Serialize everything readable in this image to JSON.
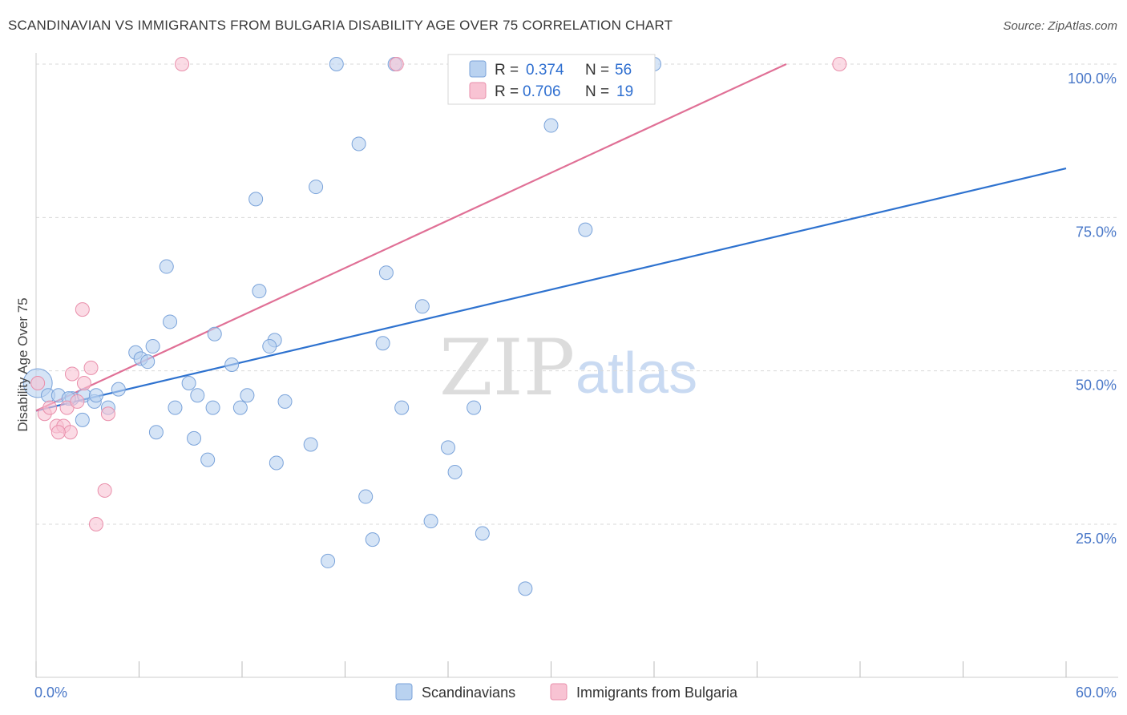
{
  "header": {
    "title": "SCANDINAVIAN VS IMMIGRANTS FROM BULGARIA DISABILITY AGE OVER 75 CORRELATION CHART",
    "source": "Source: ZipAtlas.com"
  },
  "watermark": {
    "zip": "ZIP",
    "atlas": "atlas"
  },
  "legend": {
    "rows": [
      {
        "r_label": "R =",
        "r_value": "0.374",
        "n_label": "N =",
        "n_value": "56"
      },
      {
        "r_label": "R =",
        "r_value": "0.706",
        "n_label": "N =",
        "n_value": "19"
      }
    ]
  },
  "bottom_legend": {
    "items": [
      "Scandinavians",
      "Immigrants from Bulgaria"
    ]
  },
  "colors": {
    "blue_fill": "#b9d2f0",
    "blue_stroke": "#7aa3da",
    "blue_line": "#2e72cf",
    "pink_fill": "#f8c3d3",
    "pink_stroke": "#e98fab",
    "pink_line": "#e07096",
    "grid": "#d9d9d9",
    "tick_label": "#4a78c8"
  },
  "chart_data": {
    "type": "scatter",
    "title": "SCANDINAVIAN VS IMMIGRANTS FROM BULGARIA DISABILITY AGE OVER 75 CORRELATION CHART",
    "xlabel": "",
    "ylabel": "Disability Age Over 75",
    "xlim": [
      0,
      60
    ],
    "ylim": [
      0,
      105
    ],
    "x_tick_labels": [
      "0.0%",
      "60.0%"
    ],
    "y_ticks": [
      25,
      50,
      75,
      100
    ],
    "y_tick_labels": [
      "25.0%",
      "50.0%",
      "75.0%",
      "100.0%"
    ],
    "grid": true,
    "legend_position": "top-center",
    "series": [
      {
        "name": "Scandinavians",
        "color": "#b9d2f0",
        "r": 0.374,
        "n": 56,
        "points": [
          [
            0.1,
            48
          ],
          [
            0.7,
            46
          ],
          [
            1.3,
            46
          ],
          [
            2.1,
            45.5
          ],
          [
            2.8,
            46
          ],
          [
            3.4,
            45
          ],
          [
            4.2,
            44
          ],
          [
            4.8,
            47
          ],
          [
            3.5,
            46
          ],
          [
            2.7,
            42
          ],
          [
            1.9,
            45.5
          ],
          [
            5.8,
            53
          ],
          [
            6.1,
            52
          ],
          [
            6.8,
            54
          ],
          [
            7.8,
            58
          ],
          [
            8.1,
            44
          ],
          [
            7.6,
            67
          ],
          [
            9.4,
            46
          ],
          [
            10.3,
            44
          ],
          [
            11.4,
            51
          ],
          [
            11.9,
            44
          ],
          [
            12.3,
            46
          ],
          [
            13.0,
            63
          ],
          [
            13.9,
            55
          ],
          [
            6.5,
            51.5
          ],
          [
            8.9,
            48
          ],
          [
            10.4,
            56
          ],
          [
            9.2,
            39
          ],
          [
            13.6,
            54
          ],
          [
            12.8,
            78
          ],
          [
            16.3,
            80
          ],
          [
            18.8,
            87
          ],
          [
            20.4,
            66
          ],
          [
            17.5,
            100
          ],
          [
            20.9,
            100
          ],
          [
            22.5,
            60.5
          ],
          [
            21.3,
            44
          ],
          [
            14.5,
            45
          ],
          [
            19.2,
            29.5
          ],
          [
            19.6,
            22.5
          ],
          [
            17.0,
            19
          ],
          [
            24.4,
            33.5
          ],
          [
            23.0,
            25.5
          ],
          [
            24.0,
            37.5
          ],
          [
            26.0,
            23.5
          ],
          [
            20.2,
            54.5
          ],
          [
            10.0,
            35.5
          ],
          [
            28.5,
            14.5
          ],
          [
            30.0,
            90
          ],
          [
            32.0,
            73
          ],
          [
            35.0,
            100
          ],
          [
            36.0,
            100
          ],
          [
            14.0,
            35
          ],
          [
            16.0,
            38
          ],
          [
            7.0,
            40
          ],
          [
            25.5,
            44
          ]
        ]
      },
      {
        "name": "Immigrants from Bulgaria",
        "color": "#f8c3d3",
        "r": 0.706,
        "n": 19,
        "points": [
          [
            0.1,
            48
          ],
          [
            0.5,
            43
          ],
          [
            0.8,
            44
          ],
          [
            1.2,
            41
          ],
          [
            1.6,
            41
          ],
          [
            1.8,
            44
          ],
          [
            2.1,
            49.5
          ],
          [
            2.4,
            45
          ],
          [
            2.8,
            48
          ],
          [
            3.2,
            50.5
          ],
          [
            2.0,
            40
          ],
          [
            4.0,
            30.5
          ],
          [
            3.5,
            25
          ],
          [
            2.7,
            60
          ],
          [
            4.2,
            43
          ],
          [
            1.3,
            40
          ],
          [
            8.5,
            100
          ],
          [
            21.0,
            100
          ],
          [
            46.8,
            100
          ]
        ]
      }
    ],
    "trend_lines": [
      {
        "series": "Scandinavians",
        "x": [
          0,
          60
        ],
        "y": [
          43.5,
          83
        ]
      },
      {
        "series": "Immigrants from Bulgaria",
        "x": [
          0,
          43.7
        ],
        "y": [
          43.5,
          100
        ]
      }
    ]
  }
}
